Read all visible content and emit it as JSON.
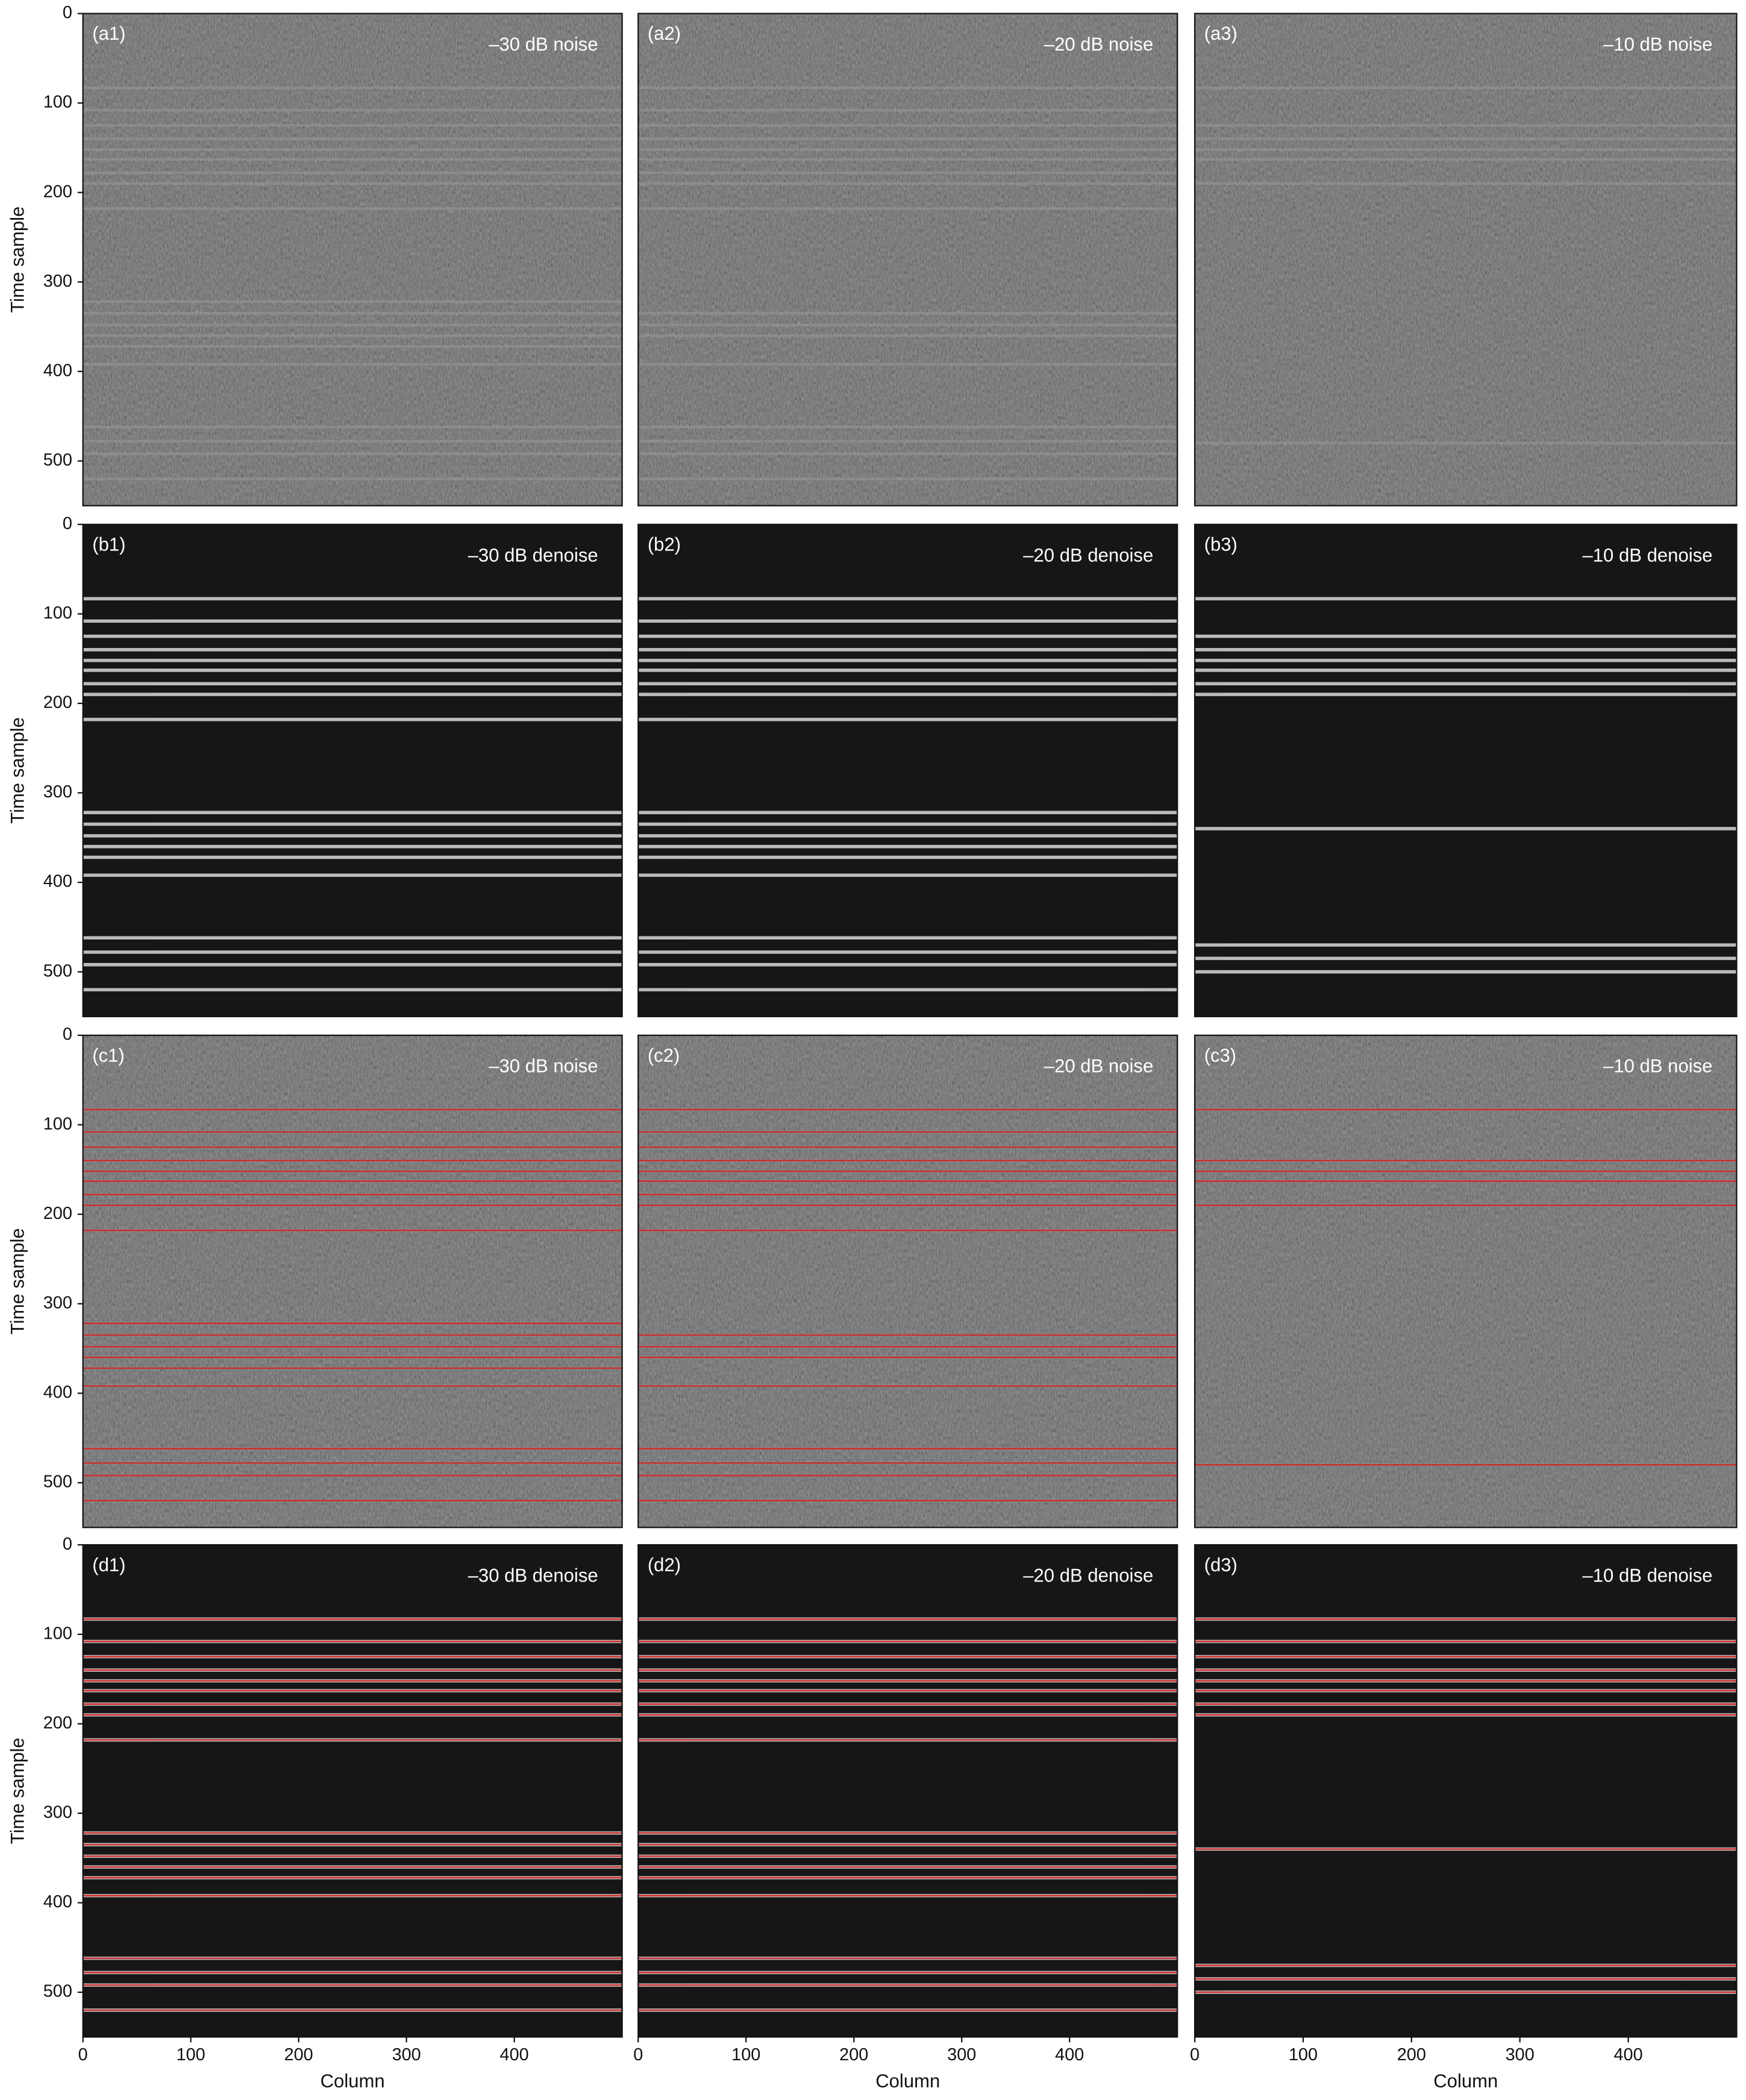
{
  "chart_data": [
    {
      "type": "image",
      "label": "(a1)",
      "title": "–30 dB noise",
      "style": "noise",
      "picks": false,
      "xlim": [
        0,
        500
      ],
      "ylim": [
        550,
        0
      ],
      "ylabel": "Time sample",
      "yticks": [
        0,
        100,
        200,
        300,
        400,
        500
      ],
      "horizons": [
        83,
        108,
        125,
        140,
        152,
        163,
        178,
        190,
        218,
        322,
        335,
        348,
        360,
        372,
        392,
        462,
        478,
        492,
        520
      ]
    },
    {
      "type": "image",
      "label": "(a2)",
      "title": "–20 dB noise",
      "style": "noise",
      "picks": false,
      "xlim": [
        0,
        500
      ],
      "ylim": [
        550,
        0
      ],
      "horizons": [
        83,
        108,
        125,
        140,
        152,
        163,
        178,
        190,
        218,
        335,
        348,
        360,
        392,
        462,
        478,
        492,
        520
      ]
    },
    {
      "type": "image",
      "label": "(a3)",
      "title": "–10 dB noise",
      "style": "noise",
      "picks": false,
      "xlim": [
        0,
        500
      ],
      "ylim": [
        550,
        0
      ],
      "horizons": [
        83,
        125,
        140,
        152,
        163,
        190,
        480
      ]
    },
    {
      "type": "image",
      "label": "(b1)",
      "title": "–30 dB denoise",
      "style": "denoise",
      "picks": false,
      "xlim": [
        0,
        500
      ],
      "ylim": [
        550,
        0
      ],
      "ylabel": "Time sample",
      "yticks": [
        0,
        100,
        200,
        300,
        400,
        500
      ],
      "horizons": [
        83,
        108,
        125,
        140,
        152,
        163,
        178,
        190,
        218,
        322,
        335,
        348,
        360,
        372,
        392,
        462,
        478,
        492,
        520
      ]
    },
    {
      "type": "image",
      "label": "(b2)",
      "title": "–20 dB denoise",
      "style": "denoise",
      "picks": false,
      "xlim": [
        0,
        500
      ],
      "ylim": [
        550,
        0
      ],
      "horizons": [
        83,
        108,
        125,
        140,
        152,
        163,
        178,
        190,
        218,
        322,
        335,
        348,
        360,
        372,
        392,
        462,
        478,
        492,
        520
      ]
    },
    {
      "type": "image",
      "label": "(b3)",
      "title": "–10 dB denoise",
      "style": "denoise",
      "picks": false,
      "xlim": [
        0,
        500
      ],
      "ylim": [
        550,
        0
      ],
      "horizons": [
        83,
        125,
        140,
        152,
        163,
        178,
        190,
        340,
        470,
        485,
        500
      ]
    },
    {
      "type": "image",
      "label": "(c1)",
      "title": "–30 dB noise",
      "style": "noise",
      "picks": true,
      "xlim": [
        0,
        500
      ],
      "ylim": [
        550,
        0
      ],
      "ylabel": "Time sample",
      "yticks": [
        0,
        100,
        200,
        300,
        400,
        500
      ],
      "horizons": [
        83,
        108,
        125,
        140,
        152,
        163,
        178,
        190,
        218,
        322,
        335,
        348,
        360,
        372,
        392,
        462,
        478,
        492,
        520
      ]
    },
    {
      "type": "image",
      "label": "(c2)",
      "title": "–20 dB noise",
      "style": "noise",
      "picks": true,
      "xlim": [
        0,
        500
      ],
      "ylim": [
        550,
        0
      ],
      "horizons": [
        83,
        108,
        125,
        140,
        152,
        163,
        178,
        190,
        218,
        335,
        348,
        360,
        392,
        462,
        478,
        492,
        520
      ]
    },
    {
      "type": "image",
      "label": "(c3)",
      "title": "–10 dB noise",
      "style": "noise",
      "picks": true,
      "xlim": [
        0,
        500
      ],
      "ylim": [
        550,
        0
      ],
      "horizons": [
        83,
        140,
        152,
        163,
        190,
        480
      ]
    },
    {
      "type": "image",
      "label": "(d1)",
      "title": "–30 dB denoise",
      "style": "denoise",
      "picks": true,
      "xlim": [
        0,
        500
      ],
      "ylim": [
        550,
        0
      ],
      "ylabel": "Time sample",
      "xlabel": "Column",
      "yticks": [
        0,
        100,
        200,
        300,
        400,
        500
      ],
      "xticks": [
        0,
        100,
        200,
        300,
        400
      ],
      "horizons": [
        83,
        108,
        125,
        140,
        152,
        163,
        178,
        190,
        218,
        322,
        335,
        348,
        360,
        372,
        392,
        462,
        478,
        492,
        520
      ]
    },
    {
      "type": "image",
      "label": "(d2)",
      "title": "–20 dB denoise",
      "style": "denoise",
      "picks": true,
      "xlim": [
        0,
        500
      ],
      "ylim": [
        550,
        0
      ],
      "xlabel": "Column",
      "xticks": [
        0,
        100,
        200,
        300,
        400
      ],
      "horizons": [
        83,
        108,
        125,
        140,
        152,
        163,
        178,
        190,
        218,
        322,
        335,
        348,
        360,
        372,
        392,
        462,
        478,
        492,
        520
      ]
    },
    {
      "type": "image",
      "label": "(d3)",
      "title": "–10 dB denoise",
      "style": "denoise",
      "picks": true,
      "xlim": [
        0,
        500
      ],
      "ylim": [
        550,
        0
      ],
      "xlabel": "Column",
      "xticks": [
        0,
        100,
        200,
        300,
        400
      ],
      "horizons": [
        83,
        108,
        125,
        140,
        152,
        163,
        178,
        190,
        340,
        470,
        485,
        500
      ]
    }
  ]
}
